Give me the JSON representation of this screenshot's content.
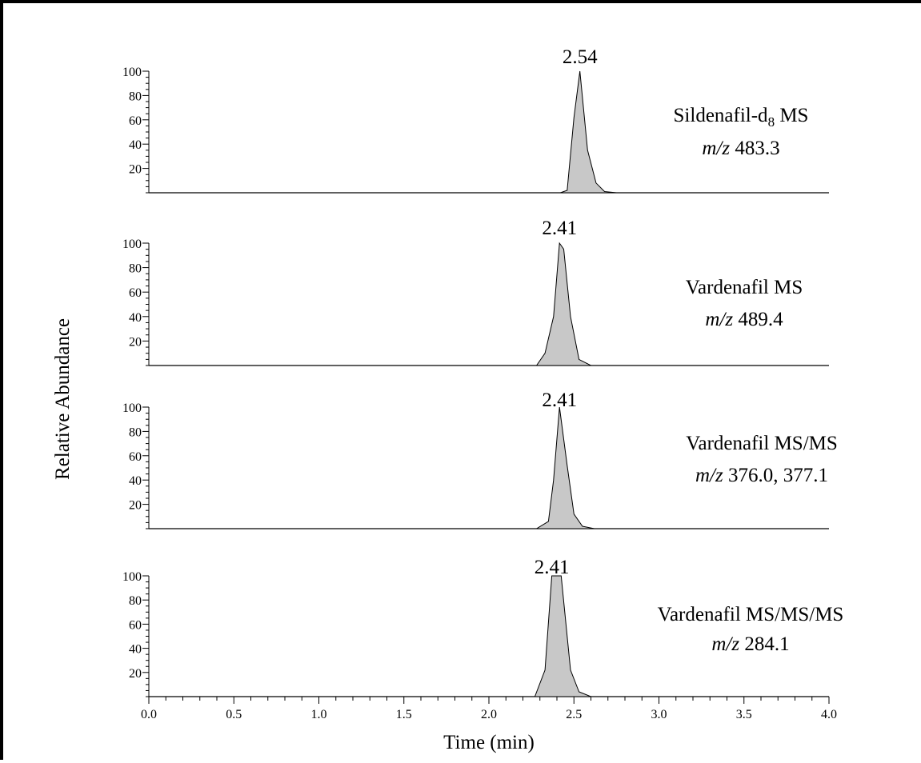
{
  "chart_data": {
    "type": "area",
    "xlabel": "Time (min)",
    "ylabel": "Relative Abundance",
    "xlim": [
      0.0,
      4.0
    ],
    "ylim": [
      0,
      100
    ],
    "x_ticks": [
      "0.0",
      "0.5",
      "1.0",
      "1.5",
      "2.0",
      "2.5",
      "3.0",
      "3.5",
      "4.0"
    ],
    "y_ticks": [
      "20",
      "40",
      "60",
      "80",
      "100"
    ],
    "panels": [
      {
        "peak_label": "2.54",
        "label_line1_main": "Sildenafil-d",
        "label_line1_sub": "8",
        "label_line1_tail": " MS",
        "label_line2_italic": "m/z",
        "label_line2_tail": " 483.3",
        "x": [
          0.0,
          2.42,
          2.46,
          2.5,
          2.535,
          2.58,
          2.63,
          2.68,
          2.75,
          4.0
        ],
        "y": [
          0,
          0,
          2,
          62,
          100,
          35,
          8,
          1,
          0,
          0
        ]
      },
      {
        "peak_label": "2.41",
        "label_line1_main": "Vardenafil MS",
        "label_line1_sub": "",
        "label_line1_tail": "",
        "label_line2_italic": "m/z",
        "label_line2_tail": " 489.4",
        "x": [
          0.0,
          2.28,
          2.33,
          2.38,
          2.415,
          2.44,
          2.48,
          2.53,
          2.6,
          4.0
        ],
        "y": [
          0,
          0,
          10,
          40,
          100,
          95,
          40,
          5,
          0,
          0
        ]
      },
      {
        "peak_label": "2.41",
        "label_line1_main": "Vardenafil MS/MS",
        "label_line1_sub": "",
        "label_line1_tail": "",
        "label_line2_italic": "m/z",
        "label_line2_tail": " 376.0, 377.1",
        "x": [
          0.0,
          2.28,
          2.35,
          2.38,
          2.415,
          2.46,
          2.5,
          2.55,
          2.62,
          4.0
        ],
        "y": [
          0,
          0,
          6,
          40,
          100,
          52,
          12,
          2,
          0,
          0
        ]
      },
      {
        "peak_label": "2.41",
        "label_line1_main": "Vardenafil MS/MS/MS",
        "label_line1_sub": "",
        "label_line1_tail": "",
        "label_line2_italic": "m/z",
        "label_line2_tail": " 284.1",
        "x": [
          0.0,
          2.27,
          2.33,
          2.37,
          2.395,
          2.425,
          2.48,
          2.53,
          2.6,
          4.0
        ],
        "y": [
          0,
          0,
          22,
          100,
          100,
          100,
          22,
          4,
          0,
          0
        ]
      }
    ]
  }
}
